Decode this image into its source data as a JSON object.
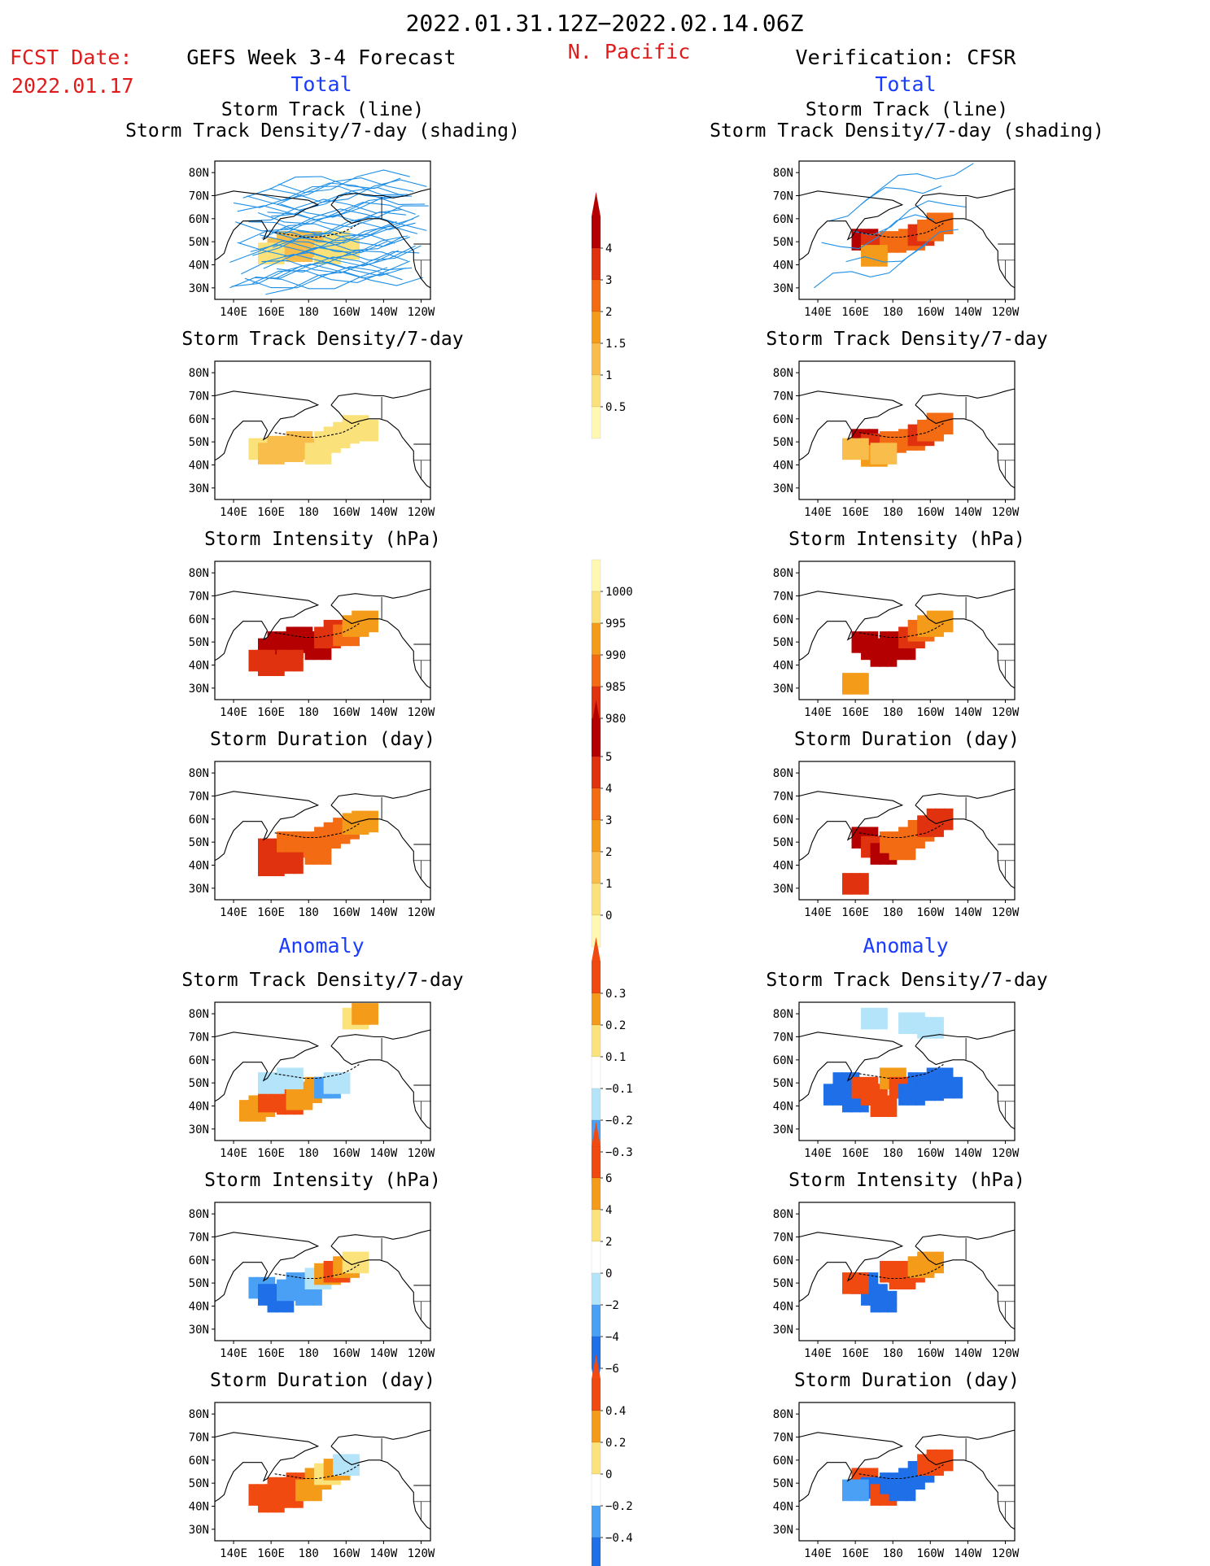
{
  "header": {
    "period": "2022.01.31.12Z−2022.02.14.06Z",
    "fcst_label": "FCST Date:",
    "fcst_date": "2022.01.17",
    "model": "GEFS Week 3-4 Forecast",
    "region": "N. Pacific",
    "verification": "Verification: CFSR",
    "total_left": "Total",
    "total_right": "Total",
    "anomaly_left": "Anomaly",
    "anomaly_right": "Anomaly"
  },
  "colors": {
    "blue_heading": "#1a3cff",
    "red_heading": "#e01b1b",
    "track_line": "#1e8fe6",
    "positive_scale": [
      "#fff8b0",
      "#fbe17a",
      "#f8bd4a",
      "#f59b1a",
      "#f36b12",
      "#e0320e",
      "#b40000"
    ],
    "anomaly_scale": [
      "#1f6fe8",
      "#4aa0f5",
      "#b4e4fa",
      "#ffffff",
      "#fbe27a",
      "#f59b1a",
      "#f04a10"
    ]
  },
  "map_axes": {
    "x_ticks": [
      "140E",
      "160E",
      "180",
      "160W",
      "140W",
      "120W"
    ],
    "y_ticks": [
      "80N",
      "70N",
      "60N",
      "50N",
      "40N",
      "30N"
    ]
  },
  "colorbars": [
    {
      "id": "density-total",
      "labels": [
        "4",
        "3",
        "2",
        "1.5",
        "1",
        "0.5"
      ]
    },
    {
      "id": "intensity-total",
      "labels": [
        "1000",
        "995",
        "990",
        "985",
        "980"
      ]
    },
    {
      "id": "duration-total",
      "labels": [
        "5",
        "4",
        "3",
        "2",
        "1",
        "0"
      ]
    },
    {
      "id": "density-anomaly",
      "labels": [
        "0.3",
        "0.2",
        "0.1",
        "−0.1",
        "−0.2",
        "−0.3"
      ]
    },
    {
      "id": "intensity-anomaly",
      "labels": [
        "6",
        "4",
        "2",
        "0",
        "−2",
        "−4",
        "−6"
      ]
    },
    {
      "id": "duration-anomaly",
      "labels": [
        "0.4",
        "0.2",
        "0",
        "−0.2",
        "−0.4"
      ]
    }
  ],
  "chart_data": [
    {
      "type": "heatmap",
      "panel": "forecast-total-track",
      "title1": "Storm Track (line)",
      "title2": "Storm Track Density/7-day (shading)",
      "cells": [
        [
          165,
          47,
          2
        ],
        [
          170,
          50,
          2
        ],
        [
          175,
          46,
          2
        ],
        [
          180,
          50,
          2
        ],
        [
          185,
          48,
          2
        ],
        [
          190,
          45,
          1
        ],
        [
          160,
          45,
          1
        ],
        [
          195,
          50,
          1
        ],
        [
          200,
          47,
          1
        ]
      ]
    },
    {
      "type": "heatmap",
      "panel": "forecast-total-density",
      "title": "Storm Track Density/7-day",
      "cells": [
        [
          155,
          47,
          1
        ],
        [
          160,
          45,
          2
        ],
        [
          165,
          48,
          2
        ],
        [
          170,
          46,
          2
        ],
        [
          175,
          50,
          2
        ],
        [
          180,
          47,
          2
        ],
        [
          185,
          45,
          1
        ],
        [
          190,
          50,
          1
        ],
        [
          195,
          52,
          1
        ],
        [
          200,
          54,
          1
        ],
        [
          205,
          57,
          1
        ],
        [
          210,
          55,
          1
        ]
      ]
    },
    {
      "type": "heatmap",
      "panel": "forecast-total-intensity",
      "title": "Storm Intensity (hPa)",
      "cells": [
        [
          160,
          47,
          6
        ],
        [
          165,
          50,
          6
        ],
        [
          170,
          48,
          6
        ],
        [
          175,
          52,
          6
        ],
        [
          180,
          50,
          6
        ],
        [
          185,
          47,
          6
        ],
        [
          190,
          52,
          5
        ],
        [
          195,
          55,
          5
        ],
        [
          200,
          53,
          4
        ],
        [
          205,
          57,
          3
        ],
        [
          210,
          59,
          3
        ],
        [
          155,
          42,
          5
        ],
        [
          160,
          40,
          5
        ],
        [
          170,
          42,
          5
        ]
      ]
    },
    {
      "type": "heatmap",
      "panel": "forecast-total-duration",
      "title": "Storm Duration (day)",
      "cells": [
        [
          160,
          47,
          5
        ],
        [
          165,
          45,
          5
        ],
        [
          170,
          50,
          4
        ],
        [
          175,
          48,
          4
        ],
        [
          180,
          50,
          4
        ],
        [
          185,
          45,
          4
        ],
        [
          190,
          52,
          4
        ],
        [
          195,
          54,
          4
        ],
        [
          200,
          56,
          4
        ],
        [
          205,
          58,
          3
        ],
        [
          210,
          59,
          3
        ],
        [
          160,
          40,
          5
        ],
        [
          170,
          41,
          5
        ]
      ]
    },
    {
      "type": "heatmap",
      "panel": "verification-total-track",
      "title1": "Storm Track (line)",
      "title2": "Storm Track Density/7-day (shading)",
      "cells": [
        [
          165,
          51,
          6
        ],
        [
          170,
          49,
          5
        ],
        [
          180,
          50,
          4
        ],
        [
          190,
          51,
          4
        ],
        [
          195,
          53,
          5
        ],
        [
          200,
          55,
          4
        ],
        [
          205,
          58,
          4
        ],
        [
          170,
          44,
          3
        ]
      ]
    },
    {
      "type": "heatmap",
      "panel": "verification-total-density",
      "title": "Storm Track Density/7-day",
      "cells": [
        [
          165,
          51,
          6
        ],
        [
          170,
          49,
          5
        ],
        [
          180,
          50,
          4
        ],
        [
          190,
          51,
          4
        ],
        [
          195,
          53,
          5
        ],
        [
          200,
          55,
          4
        ],
        [
          205,
          58,
          4
        ],
        [
          170,
          44,
          3
        ],
        [
          160,
          47,
          2
        ],
        [
          175,
          45,
          2
        ]
      ]
    },
    {
      "type": "heatmap",
      "panel": "verification-total-intensity",
      "title": "Storm Intensity (hPa)",
      "cells": [
        [
          165,
          50,
          6
        ],
        [
          170,
          47,
          6
        ],
        [
          175,
          44,
          6
        ],
        [
          180,
          50,
          6
        ],
        [
          185,
          47,
          6
        ],
        [
          190,
          52,
          5
        ],
        [
          195,
          55,
          4
        ],
        [
          200,
          57,
          3
        ],
        [
          205,
          59,
          3
        ],
        [
          160,
          32,
          3
        ]
      ]
    },
    {
      "type": "heatmap",
      "panel": "verification-total-duration",
      "title": "Storm Duration (day)",
      "cells": [
        [
          165,
          52,
          6
        ],
        [
          170,
          48,
          5
        ],
        [
          175,
          45,
          6
        ],
        [
          180,
          50,
          4
        ],
        [
          185,
          47,
          4
        ],
        [
          190,
          52,
          4
        ],
        [
          195,
          55,
          4
        ],
        [
          200,
          57,
          5
        ],
        [
          205,
          60,
          5
        ],
        [
          160,
          32,
          5
        ]
      ]
    },
    {
      "type": "heatmap",
      "panel": "forecast-anomaly-density",
      "title": "Storm Track Density/7-day",
      "cells": [
        [
          150,
          38,
          2
        ],
        [
          155,
          40,
          2
        ],
        [
          160,
          42,
          3
        ],
        [
          165,
          44,
          3
        ],
        [
          170,
          41,
          3
        ],
        [
          175,
          43,
          2
        ],
        [
          180,
          46,
          2
        ],
        [
          185,
          48,
          2
        ],
        [
          160,
          50,
          -1
        ],
        [
          170,
          52,
          -1
        ],
        [
          190,
          48,
          -2
        ],
        [
          195,
          50,
          -1
        ],
        [
          205,
          78,
          1
        ],
        [
          210,
          80,
          2
        ]
      ]
    },
    {
      "type": "heatmap",
      "panel": "forecast-anomaly-intensity",
      "title": "Storm Intensity (hPa)",
      "cells": [
        [
          155,
          48,
          -2
        ],
        [
          160,
          45,
          -3
        ],
        [
          165,
          42,
          -3
        ],
        [
          170,
          47,
          -2
        ],
        [
          175,
          50,
          -2
        ],
        [
          180,
          45,
          -2
        ],
        [
          185,
          52,
          -1
        ],
        [
          190,
          54,
          2
        ],
        [
          195,
          55,
          3
        ],
        [
          200,
          57,
          2
        ],
        [
          205,
          59,
          1
        ]
      ]
    },
    {
      "type": "heatmap",
      "panel": "forecast-anomaly-duration",
      "title": "Storm Duration (day)",
      "cells": [
        [
          155,
          45,
          3
        ],
        [
          160,
          42,
          3
        ],
        [
          165,
          48,
          3
        ],
        [
          170,
          44,
          3
        ],
        [
          175,
          50,
          3
        ],
        [
          180,
          47,
          2
        ],
        [
          185,
          52,
          2
        ],
        [
          190,
          54,
          1
        ],
        [
          195,
          56,
          2
        ],
        [
          200,
          58,
          -1
        ]
      ]
    },
    {
      "type": "heatmap",
      "panel": "verification-anomaly-density",
      "title": "Storm Track Density/7-day",
      "cells": [
        [
          150,
          45,
          -3
        ],
        [
          155,
          50,
          -3
        ],
        [
          160,
          42,
          -3
        ],
        [
          165,
          48,
          3
        ],
        [
          170,
          45,
          3
        ],
        [
          175,
          40,
          3
        ],
        [
          180,
          52,
          2
        ],
        [
          185,
          48,
          3
        ],
        [
          190,
          45,
          -3
        ],
        [
          195,
          50,
          -3
        ],
        [
          200,
          47,
          -3
        ],
        [
          205,
          52,
          -3
        ],
        [
          210,
          48,
          -3
        ],
        [
          170,
          78,
          -1
        ],
        [
          190,
          76,
          -1
        ],
        [
          200,
          74,
          -1
        ]
      ]
    },
    {
      "type": "heatmap",
      "panel": "verification-anomaly-intensity",
      "title": "Storm Intensity (hPa)",
      "cells": [
        [
          165,
          50,
          -3
        ],
        [
          170,
          45,
          -3
        ],
        [
          175,
          42,
          -3
        ],
        [
          180,
          55,
          3
        ],
        [
          185,
          52,
          3
        ],
        [
          190,
          55,
          3
        ],
        [
          195,
          57,
          2
        ],
        [
          200,
          59,
          2
        ],
        [
          160,
          50,
          3
        ]
      ]
    },
    {
      "type": "heatmap",
      "panel": "verification-anomaly-duration",
      "title": "Storm Duration (day)",
      "cells": [
        [
          165,
          52,
          3
        ],
        [
          170,
          48,
          -3
        ],
        [
          175,
          45,
          3
        ],
        [
          180,
          50,
          -3
        ],
        [
          185,
          47,
          -3
        ],
        [
          190,
          52,
          -3
        ],
        [
          195,
          55,
          -3
        ],
        [
          200,
          58,
          3
        ],
        [
          205,
          60,
          3
        ],
        [
          160,
          47,
          -2
        ]
      ]
    }
  ]
}
